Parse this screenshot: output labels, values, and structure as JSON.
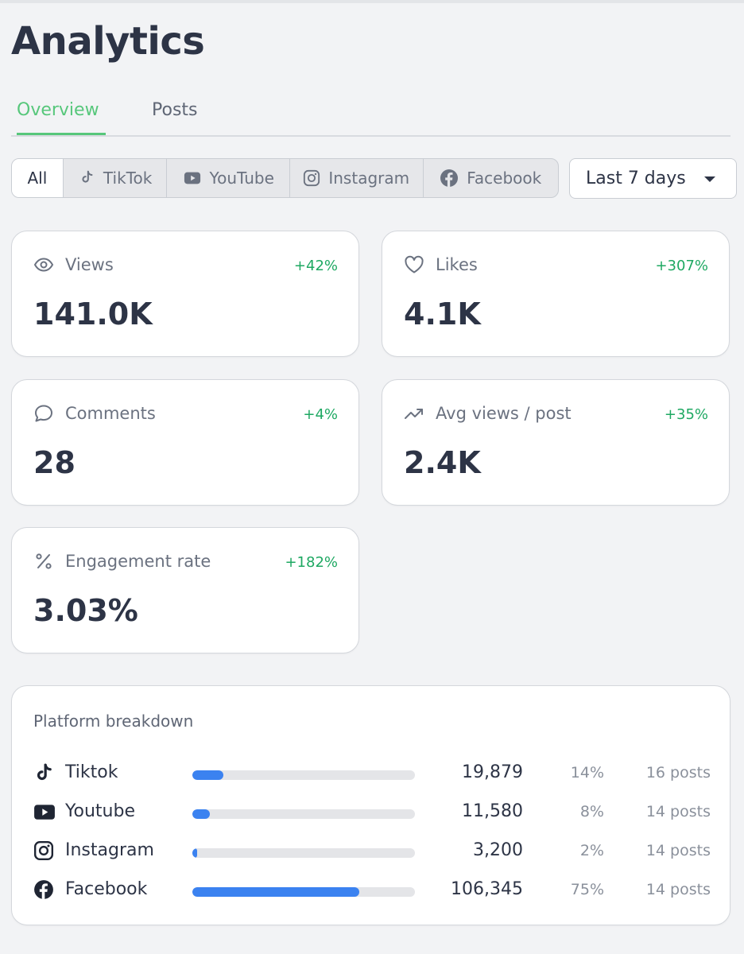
{
  "page": {
    "title": "Analytics"
  },
  "tabs": [
    {
      "label": "Overview",
      "active": true
    },
    {
      "label": "Posts",
      "active": false
    }
  ],
  "platform_filter": {
    "options": [
      {
        "label": "All",
        "icon": null,
        "active": true
      },
      {
        "label": "TikTok",
        "icon": "tiktok-icon",
        "active": false
      },
      {
        "label": "YouTube",
        "icon": "youtube-icon",
        "active": false
      },
      {
        "label": "Instagram",
        "icon": "instagram-icon",
        "active": false
      },
      {
        "label": "Facebook",
        "icon": "facebook-icon",
        "active": false
      }
    ]
  },
  "date_range": {
    "selected": "Last 7 days"
  },
  "metrics": {
    "views": {
      "label": "Views",
      "value": "141.0K",
      "delta": "+42%",
      "icon": "eye-icon"
    },
    "likes": {
      "label": "Likes",
      "value": "4.1K",
      "delta": "+307%",
      "icon": "heart-icon"
    },
    "comments": {
      "label": "Comments",
      "value": "28",
      "delta": "+4%",
      "icon": "comment-icon"
    },
    "avg_views": {
      "label": "Avg views / post",
      "value": "2.4K",
      "delta": "+35%",
      "icon": "trend-up-icon"
    },
    "engagement": {
      "label": "Engagement rate",
      "value": "3.03%",
      "delta": "+182%",
      "icon": "percent-icon"
    }
  },
  "breakdown": {
    "title": "Platform breakdown",
    "rows": [
      {
        "name": "Tiktok",
        "icon": "tiktok-icon",
        "count": "19,879",
        "percent": "14%",
        "share": 0.14,
        "posts": "16 posts"
      },
      {
        "name": "Youtube",
        "icon": "youtube-icon",
        "count": "11,580",
        "percent": "8%",
        "share": 0.08,
        "posts": "14 posts"
      },
      {
        "name": "Instagram",
        "icon": "instagram-icon",
        "count": "3,200",
        "percent": "2%",
        "share": 0.02,
        "posts": "14 posts"
      },
      {
        "name": "Facebook",
        "icon": "facebook-icon",
        "count": "106,345",
        "percent": "75%",
        "share": 0.75,
        "posts": "14 posts"
      }
    ]
  },
  "colors": {
    "accent_green": "#57c77b",
    "positive_delta": "#1ea862",
    "bar_fill": "#3b82f0",
    "bar_track": "#e4e5e8"
  }
}
